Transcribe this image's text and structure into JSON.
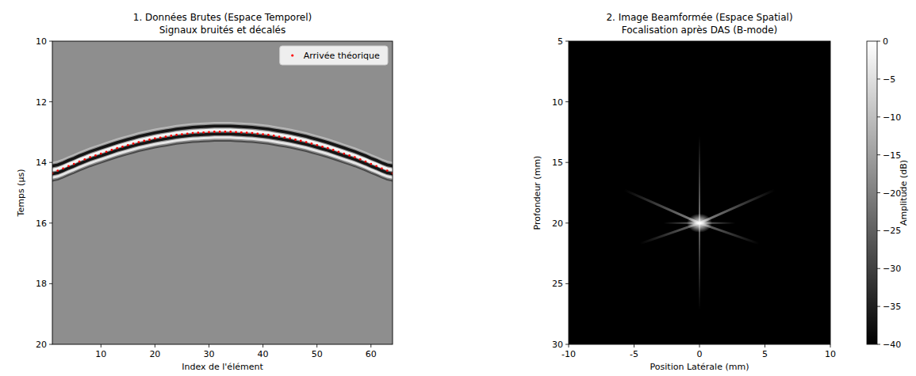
{
  "chart_data": [
    {
      "type": "scatter",
      "title": "1. Données Brutes (Espace Temporel)",
      "subtitle": "Signaux bruités et décalés",
      "x_label": "Index de l'élément",
      "y_label": "Temps (μs)",
      "xlim": [
        1,
        64
      ],
      "ylim": [
        20,
        10
      ],
      "xticks": [
        10,
        20,
        30,
        40,
        50,
        60
      ],
      "yticks": [
        10,
        12,
        14,
        16,
        18,
        20
      ],
      "grid": false,
      "legend": "upper right",
      "x": [
        1,
        2,
        3,
        4,
        5,
        6,
        7,
        8,
        9,
        10,
        11,
        12,
        13,
        14,
        15,
        16,
        17,
        18,
        19,
        20,
        21,
        22,
        23,
        24,
        25,
        26,
        27,
        28,
        29,
        30,
        31,
        32,
        33,
        34,
        35,
        36,
        37,
        38,
        39,
        40,
        41,
        42,
        43,
        44,
        45,
        46,
        47,
        48,
        49,
        50,
        51,
        52,
        53,
        54,
        55,
        56,
        57,
        58,
        59,
        60,
        61,
        62,
        63,
        64
      ],
      "series": [
        {
          "name": "Arrivée théorique",
          "color": "#ff0000",
          "marker": "dot",
          "values": [
            14.36,
            14.27,
            14.2,
            14.12,
            14.05,
            13.97,
            13.9,
            13.83,
            13.77,
            13.71,
            13.65,
            13.59,
            13.53,
            13.48,
            13.43,
            13.38,
            13.33,
            13.29,
            13.25,
            13.21,
            13.18,
            13.15,
            13.12,
            13.09,
            13.07,
            13.05,
            13.03,
            13.02,
            13.01,
            13.0,
            12.99,
            12.99,
            12.99,
            12.99,
            13.0,
            13.01,
            13.02,
            13.03,
            13.05,
            13.07,
            13.09,
            13.12,
            13.15,
            13.18,
            13.21,
            13.25,
            13.29,
            13.33,
            13.38,
            13.43,
            13.48,
            13.53,
            13.59,
            13.65,
            13.71,
            13.77,
            13.83,
            13.9,
            13.97,
            14.05,
            14.12,
            14.2,
            14.27,
            14.36
          ]
        }
      ]
    },
    {
      "type": "image",
      "title": "2. Image Beamformée (Espace Spatial)",
      "subtitle": "Focalisation après DAS (B-mode)",
      "x_label": "Position Latérale (mm)",
      "y_label": "Profondeur (mm)",
      "xlim": [
        -10,
        10
      ],
      "ylim": [
        30,
        5
      ],
      "xticks": [
        -10,
        -5,
        0,
        5,
        10
      ],
      "yticks": [
        5,
        10,
        15,
        20,
        25,
        30
      ],
      "grid": false,
      "target": {
        "x": 0,
        "y": 20
      },
      "colorbar": {
        "label": "Amplitude (dB)",
        "range": [
          -40,
          0
        ],
        "ticks": [
          0,
          {
            "value": -5,
            "label": "−5"
          },
          {
            "value": -10,
            "label": "−10"
          },
          {
            "value": -15,
            "label": "−15"
          },
          {
            "value": -20,
            "label": "−20"
          },
          {
            "value": -25,
            "label": "−25"
          },
          {
            "value": -30,
            "label": "−30"
          },
          {
            "value": -35,
            "label": "−35"
          },
          {
            "value": -40,
            "label": "−40"
          }
        ]
      }
    }
  ]
}
